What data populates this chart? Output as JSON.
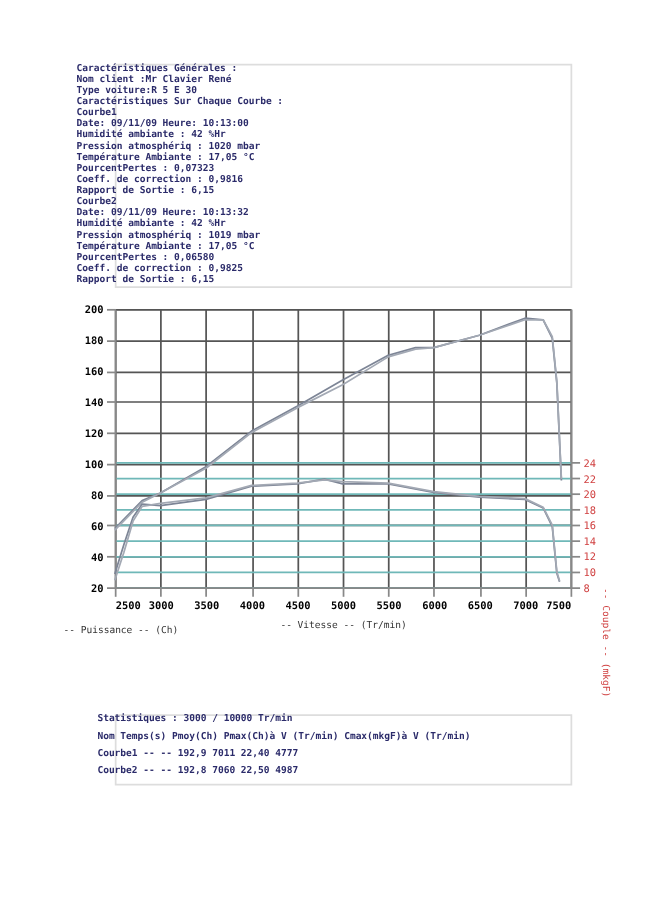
{
  "chart_data": {
    "type": "line",
    "xlabel": "-- Vitesse -- (Tr/min)",
    "ylabel": "-- Puissance -- (Ch)",
    "y2label": "-- Couple -- (mkgF)",
    "xlim": [
      2500,
      7500
    ],
    "xticks": [
      2500,
      3000,
      3500,
      4000,
      4500,
      5000,
      5500,
      6000,
      6500,
      7000,
      7500
    ],
    "ylim": [
      20,
      200
    ],
    "yticks": [
      20,
      40,
      60,
      80,
      100,
      120,
      140,
      160,
      180,
      200
    ],
    "y2lim": [
      8,
      43.8
    ],
    "y2ticks": [
      8,
      10,
      12,
      14,
      16,
      18,
      20,
      22,
      24
    ],
    "grid": true,
    "marker": "none",
    "line_style": "solid",
    "series": [
      {
        "color": "#7d8596",
        "x": [
          2500,
          2800,
          3000,
          3500,
          4000,
          4500,
          5000,
          5500,
          5800,
          6000,
          6500,
          7000,
          7200,
          7300,
          7350,
          7400
        ],
        "values": [
          58,
          76,
          81,
          98,
          121,
          137,
          154,
          170,
          175,
          175,
          183,
          194,
          193,
          181,
          152,
          89
        ]
      },
      {
        "color": "#a3a9b4",
        "x": [
          2500,
          2800,
          3000,
          3500,
          4000,
          4500,
          5000,
          5500,
          5800,
          6000,
          6500,
          7000,
          7200,
          7300,
          7350,
          7400
        ],
        "values": [
          57,
          75,
          81,
          97,
          120,
          136,
          151,
          169,
          174,
          175,
          183,
          193,
          193,
          182,
          153,
          90
        ]
      },
      {
        "color": "#7d8596",
        "axis": "y2",
        "x": [
          2500,
          2600,
          2700,
          2800,
          3000,
          3500,
          4000,
          4500,
          4800,
          5000,
          5500,
          6000,
          6500,
          7000,
          7200,
          7300,
          7350,
          7380
        ],
        "values": [
          9.7,
          13.5,
          17,
          18.7,
          18.5,
          19.3,
          21,
          21.3,
          21.9,
          21.3,
          21.3,
          20.2,
          19.6,
          19.3,
          18.2,
          15.8,
          9.8,
          8.7
        ]
      },
      {
        "color": "#a3a9b4",
        "axis": "y2",
        "x": [
          2500,
          2600,
          2700,
          2800,
          3000,
          3500,
          4000,
          4500,
          4800,
          5000,
          5500,
          6000,
          6500,
          7000,
          7200,
          7300,
          7350,
          7380
        ],
        "values": [
          8.9,
          12.5,
          16.5,
          18.4,
          18.8,
          19.5,
          21.1,
          21.4,
          21.8,
          21.6,
          21.4,
          20.3,
          19.7,
          19.4,
          18.3,
          16,
          10,
          8.8
        ]
      }
    ],
    "annotations": [
      "Caractéristiques Générales :",
      "Nom client :Mr Clavier René",
      "Type voiture:R 5 E 30",
      "Caractéristiques Sur Chaque Courbe :",
      "Courbe1",
      "Date: 09/11/09  Heure: 10:13:00",
      "Humidité ambiante : 42 %Hr",
      "Pression atmosphériq : 1020 mbar",
      "Température Ambiante : 17,05 °C",
      "PourcentPertes : 0,07323",
      "Coeff. de correction : 0,9816",
      "Rapport de Sortie : 6,15",
      "Courbe2",
      "Date: 09/11/09  Heure: 10:13:32",
      "Humidité ambiante : 42 %Hr",
      "Pression atmosphériq : 1019 mbar",
      "Température Ambiante : 17,05 °C",
      "PourcentPertes : 0,06580",
      "Coeff. de correction : 0,9825",
      "Rapport de Sortie : 6,15",
      "Statistiques : 3000 / 10000 Tr/min",
      "Nom       Temps(s)  Pmoy(Ch)  Pmax(Ch)à V (Tr/min)  Cmax(mkgF)à V (Tr/min)",
      "Courbe1   --        --        192,9     7011        22,40      4777",
      "Courbe2   --        --        192,8     7060        22,50      4987"
    ]
  }
}
